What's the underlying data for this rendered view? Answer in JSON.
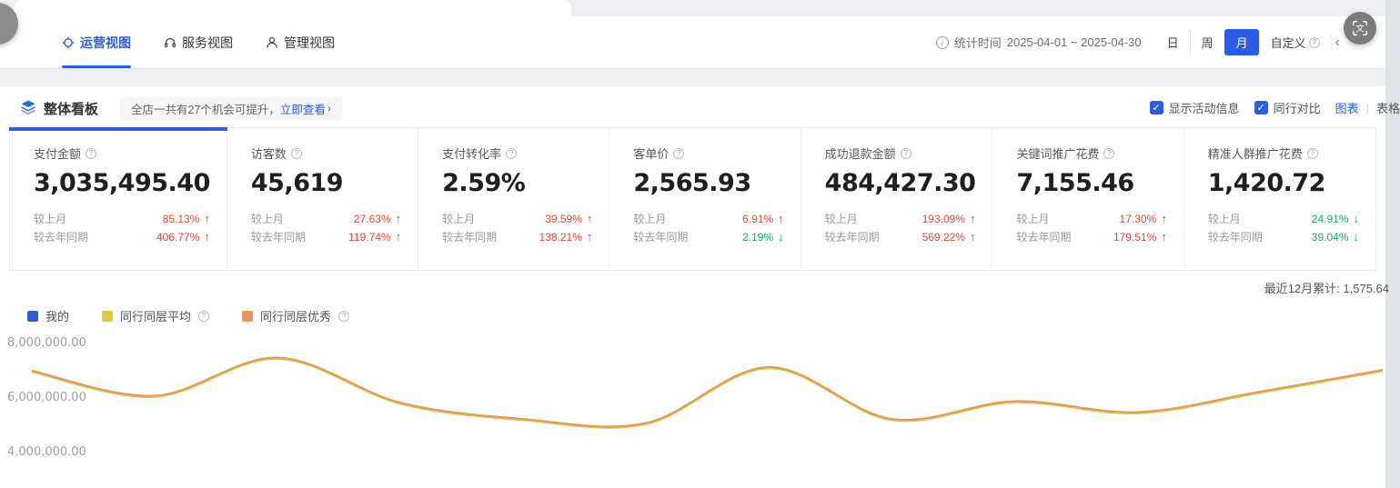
{
  "colors": {
    "accent": "#2b5ce7",
    "up_red": "#e0483e",
    "down_green": "#1fa67a"
  },
  "icons": {
    "check": "✓",
    "chevron_right": "›",
    "chevron_left": "‹",
    "question": "?",
    "info": "i",
    "translate": "文"
  },
  "header": {
    "tabs": [
      {
        "label": "运营视图",
        "active": true
      },
      {
        "label": "服务视图",
        "active": false
      },
      {
        "label": "管理视图",
        "active": false
      }
    ],
    "stat_time_label": "统计时间",
    "stat_time_range": "2025-04-01 ~ 2025-04-30",
    "periods": [
      {
        "label": "日",
        "active": false
      },
      {
        "label": "周",
        "active": false
      },
      {
        "label": "月",
        "active": true
      },
      {
        "label": "自定义",
        "active": false,
        "info": true
      }
    ]
  },
  "board": {
    "title": "整体看板",
    "notice_text": "全店一共有27个机会可提升，",
    "notice_link": "立即查看",
    "show_activity_label": "显示活动信息",
    "peer_compare_label": "同行对比",
    "view_chart_label": "图表",
    "view_table_label": "表格"
  },
  "cards": [
    {
      "label": "支付金额",
      "value": "3,035,495.40",
      "active": true,
      "rows": [
        {
          "label": "较上月",
          "value": "85.13%",
          "dir": "up"
        },
        {
          "label": "较去年同期",
          "value": "406.77%",
          "dir": "up"
        }
      ]
    },
    {
      "label": "访客数",
      "value": "45,619",
      "active": false,
      "rows": [
        {
          "label": "较上月",
          "value": "27.63%",
          "dir": "up"
        },
        {
          "label": "较去年同期",
          "value": "119.74%",
          "dir": "up"
        }
      ]
    },
    {
      "label": "支付转化率",
      "value": "2.59%",
      "active": false,
      "rows": [
        {
          "label": "较上月",
          "value": "39.59%",
          "dir": "up"
        },
        {
          "label": "较去年同期",
          "value": "138.21%",
          "dir": "up"
        }
      ]
    },
    {
      "label": "客单价",
      "value": "2,565.93",
      "active": false,
      "rows": [
        {
          "label": "较上月",
          "value": "6.91%",
          "dir": "up"
        },
        {
          "label": "较去年同期",
          "value": "2.19%",
          "dir": "down"
        }
      ]
    },
    {
      "label": "成功退款金额",
      "value": "484,427.30",
      "active": false,
      "rows": [
        {
          "label": "较上月",
          "value": "193.09%",
          "dir": "up"
        },
        {
          "label": "较去年同期",
          "value": "569.22%",
          "dir": "up"
        }
      ]
    },
    {
      "label": "关键词推广花费",
      "value": "7,155.46",
      "active": false,
      "rows": [
        {
          "label": "较上月",
          "value": "17.30%",
          "dir": "up"
        },
        {
          "label": "较去年同期",
          "value": "179.51%",
          "dir": "up"
        }
      ]
    },
    {
      "label": "精准人群推广花费",
      "value": "1,420.72",
      "active": false,
      "rows": [
        {
          "label": "较上月",
          "value": "24.91%",
          "dir": "down"
        },
        {
          "label": "较去年同期",
          "value": "39.04%",
          "dir": "down"
        }
      ]
    }
  ],
  "summary_label": "最近12月累计: 1,575.64",
  "legend": [
    {
      "label": "我的",
      "color": "#2e5bd6",
      "info": false
    },
    {
      "label": "同行同层平均",
      "color": "#d6cb4a",
      "info": true
    },
    {
      "label": "同行同层优秀",
      "color": "#e8955a",
      "info": true
    }
  ],
  "chart_data": {
    "type": "line",
    "title": "",
    "xlabel": "",
    "ylabel": "",
    "x": [
      1,
      2,
      3,
      4,
      5,
      6,
      7,
      8,
      9,
      10,
      11,
      12
    ],
    "x_labels_visible": false,
    "series": [
      {
        "name": "同行同层平均",
        "color": "#d6cb4a",
        "values": [
          6970000,
          6050000,
          7450000,
          5800000,
          5200000,
          5050000,
          7100000,
          5200000,
          5850000,
          5450000,
          6200000,
          7000000
        ]
      },
      {
        "name": "同行同层优秀",
        "color": "#e8955a",
        "values": [
          6970000,
          6050000,
          7450000,
          5800000,
          5200000,
          5050000,
          7100000,
          5200000,
          5850000,
          5450000,
          6200000,
          7000000
        ]
      }
    ],
    "yticks": [
      {
        "value": 8000000,
        "label": "8,000,000.00"
      },
      {
        "value": 6000000,
        "label": "6,000,000.00"
      },
      {
        "value": 4000000,
        "label": "4,000,000.00"
      }
    ],
    "ylim": [
      2700000,
      8570000
    ],
    "grid": false,
    "legend_position": "top-left",
    "note": "smoothed monthly line; lines for 平均/优秀 overlap; 我的 line below visible crop"
  }
}
